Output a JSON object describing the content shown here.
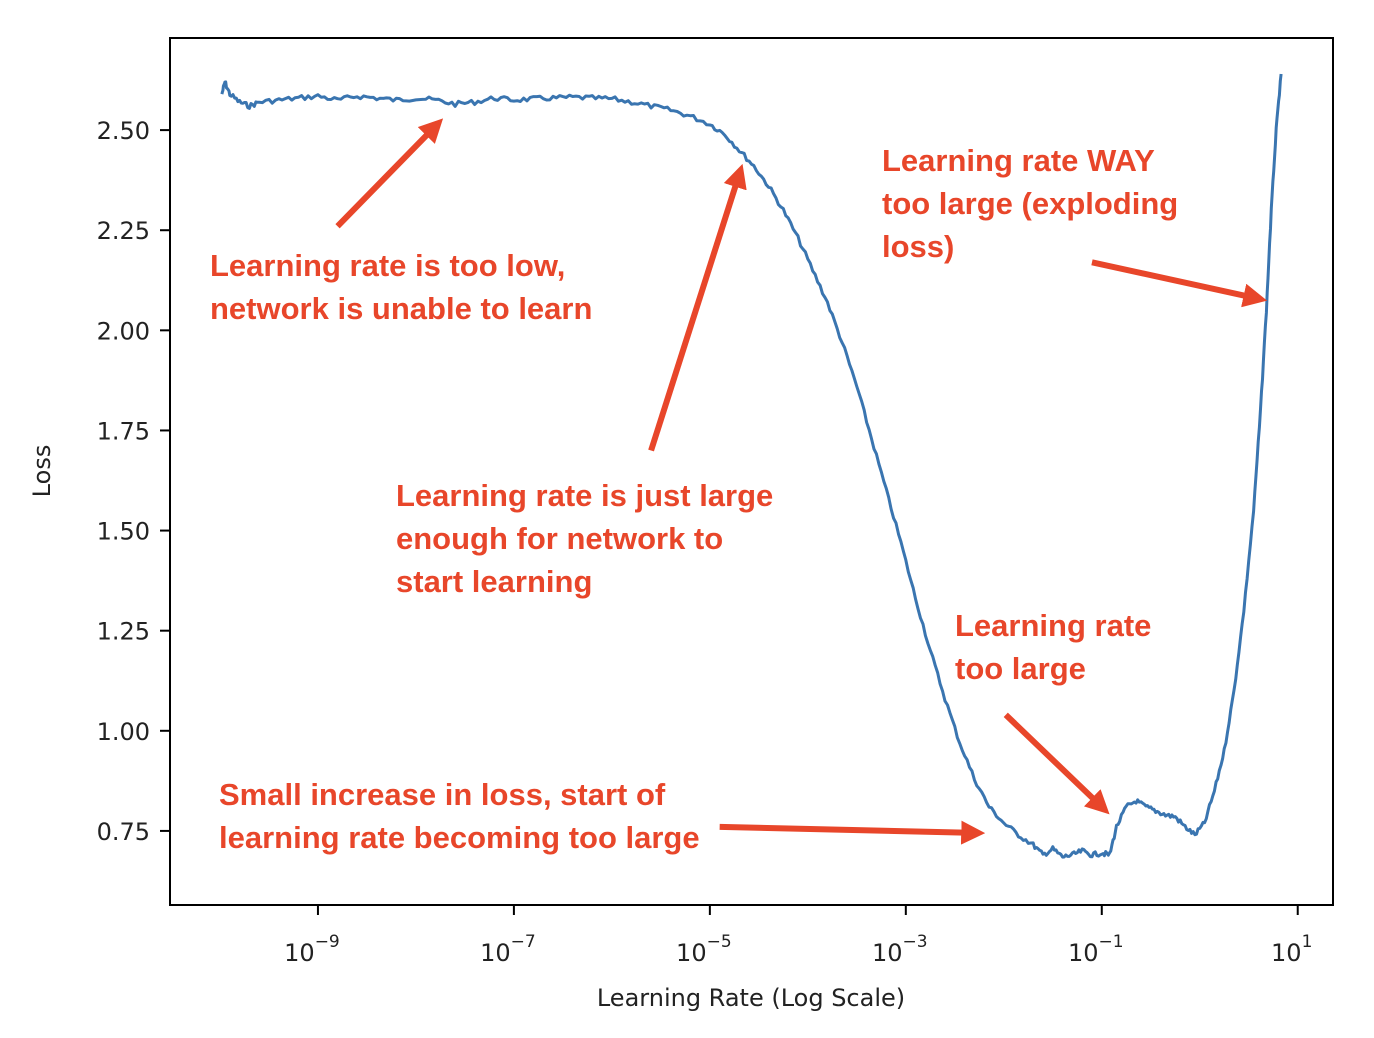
{
  "chart_data": {
    "type": "line",
    "title": "",
    "xlabel": "Learning Rate (Log Scale)",
    "ylabel": "Loss",
    "xscale": "log",
    "xlim_log10": [
      -10.51,
      1.36
    ],
    "ylim": [
      0.565,
      2.73
    ],
    "grid": false,
    "x_ticks": [
      {
        "exp": -9,
        "base": "10",
        "sup": "−9"
      },
      {
        "exp": -7,
        "base": "10",
        "sup": "−7"
      },
      {
        "exp": -5,
        "base": "10",
        "sup": "−5"
      },
      {
        "exp": -3,
        "base": "10",
        "sup": "−3"
      },
      {
        "exp": -1,
        "base": "10",
        "sup": "−1"
      },
      {
        "exp": 1,
        "base": "10",
        "sup": "1"
      }
    ],
    "y_ticks": [
      {
        "value": 2.5,
        "label": "2.50"
      },
      {
        "value": 2.25,
        "label": "2.25"
      },
      {
        "value": 2.0,
        "label": "2.00"
      },
      {
        "value": 1.75,
        "label": "1.75"
      },
      {
        "value": 1.5,
        "label": "1.50"
      },
      {
        "value": 1.25,
        "label": "1.25"
      },
      {
        "value": 1.0,
        "label": "1.00"
      },
      {
        "value": 0.75,
        "label": "0.75"
      }
    ],
    "series": [
      {
        "name": "loss",
        "color": "#3a75b0",
        "points_log10x_y": [
          [
            -9.98,
            2.59
          ],
          [
            -9.95,
            2.62
          ],
          [
            -9.9,
            2.59
          ],
          [
            -9.8,
            2.57
          ],
          [
            -9.7,
            2.56
          ],
          [
            -9.6,
            2.57
          ],
          [
            -9.4,
            2.575
          ],
          [
            -9.2,
            2.58
          ],
          [
            -9.0,
            2.585
          ],
          [
            -8.8,
            2.575
          ],
          [
            -8.6,
            2.585
          ],
          [
            -8.4,
            2.58
          ],
          [
            -8.2,
            2.575
          ],
          [
            -8.0,
            2.58
          ],
          [
            -7.8,
            2.575
          ],
          [
            -7.6,
            2.565
          ],
          [
            -7.4,
            2.57
          ],
          [
            -7.2,
            2.58
          ],
          [
            -7.0,
            2.575
          ],
          [
            -6.8,
            2.578
          ],
          [
            -6.6,
            2.58
          ],
          [
            -6.4,
            2.582
          ],
          [
            -6.2,
            2.58
          ],
          [
            -6.0,
            2.578
          ],
          [
            -5.8,
            2.57
          ],
          [
            -5.6,
            2.56
          ],
          [
            -5.4,
            2.55
          ],
          [
            -5.2,
            2.535
          ],
          [
            -5.0,
            2.515
          ],
          [
            -4.85,
            2.49
          ],
          [
            -4.7,
            2.45
          ],
          [
            -4.55,
            2.41
          ],
          [
            -4.4,
            2.36
          ],
          [
            -4.25,
            2.3
          ],
          [
            -4.1,
            2.23
          ],
          [
            -3.95,
            2.15
          ],
          [
            -3.8,
            2.07
          ],
          [
            -3.65,
            1.97
          ],
          [
            -3.5,
            1.86
          ],
          [
            -3.35,
            1.73
          ],
          [
            -3.2,
            1.6
          ],
          [
            -3.05,
            1.47
          ],
          [
            -2.9,
            1.33
          ],
          [
            -2.75,
            1.2
          ],
          [
            -2.6,
            1.08
          ],
          [
            -2.45,
            0.97
          ],
          [
            -2.3,
            0.88
          ],
          [
            -2.15,
            0.81
          ],
          [
            -2.0,
            0.77
          ],
          [
            -1.85,
            0.74
          ],
          [
            -1.7,
            0.715
          ],
          [
            -1.6,
            0.69
          ],
          [
            -1.5,
            0.705
          ],
          [
            -1.4,
            0.685
          ],
          [
            -1.3,
            0.69
          ],
          [
            -1.2,
            0.7
          ],
          [
            -1.1,
            0.69
          ],
          [
            -1.0,
            0.695
          ],
          [
            -0.92,
            0.69
          ],
          [
            -0.85,
            0.76
          ],
          [
            -0.75,
            0.81
          ],
          [
            -0.65,
            0.825
          ],
          [
            -0.55,
            0.81
          ],
          [
            -0.45,
            0.8
          ],
          [
            -0.35,
            0.79
          ],
          [
            -0.25,
            0.785
          ],
          [
            -0.15,
            0.76
          ],
          [
            -0.05,
            0.74
          ],
          [
            0.05,
            0.77
          ],
          [
            0.15,
            0.85
          ],
          [
            0.25,
            0.95
          ],
          [
            0.35,
            1.1
          ],
          [
            0.45,
            1.3
          ],
          [
            0.55,
            1.55
          ],
          [
            0.62,
            1.8
          ],
          [
            0.68,
            2.05
          ],
          [
            0.73,
            2.3
          ],
          [
            0.78,
            2.5
          ],
          [
            0.83,
            2.64
          ]
        ]
      }
    ],
    "annotations": [
      {
        "lines": [
          "Learning rate is too low,",
          "network is unable to learn"
        ],
        "color": "#e8462a",
        "arrow_from_log10x_y": [
          -8.8,
          2.26
        ],
        "arrow_to_log10x_y": [
          -7.8,
          2.51
        ]
      },
      {
        "lines": [
          "Learning rate is just large",
          "enough for network to",
          "start learning"
        ],
        "color": "#e8462a",
        "arrow_from_log10x_y": [
          -5.6,
          1.7
        ],
        "arrow_to_log10x_y": [
          -4.7,
          2.39
        ]
      },
      {
        "lines": [
          "Learning rate WAY",
          "too large (exploding",
          "loss)"
        ],
        "color": "#e8462a",
        "arrow_from_log10x_y": [
          -1.1,
          2.17
        ],
        "arrow_to_log10x_y": [
          0.58,
          2.08
        ]
      },
      {
        "lines": [
          "Learning rate",
          "too large"
        ],
        "color": "#e8462a",
        "arrow_from_log10x_y": [
          -1.98,
          1.04
        ],
        "arrow_to_log10x_y": [
          -1.0,
          0.81
        ]
      },
      {
        "lines": [
          "Small increase in loss, start of",
          "learning rate becoming too large"
        ],
        "color": "#e8462a",
        "arrow_from_log10x_y": [
          -4.9,
          0.76
        ],
        "arrow_to_log10x_y": [
          -2.3,
          0.745
        ]
      }
    ]
  }
}
